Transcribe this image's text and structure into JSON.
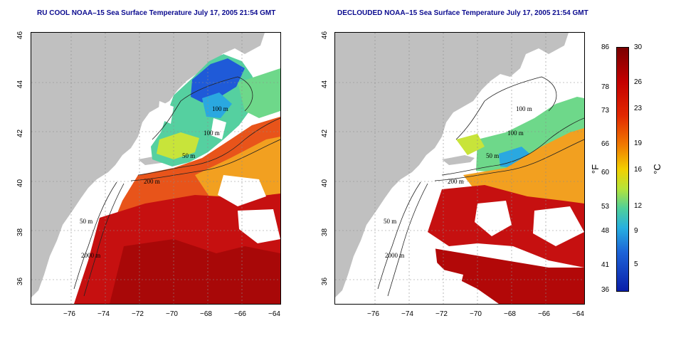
{
  "left_map": {
    "title": "RU COOL NOAA–15 Sea Surface Temperature July 17, 2005 21:54 GMT"
  },
  "right_map": {
    "title": "DECLOUDED NOAA–15 Sea Surface Temperature July 17, 2005 21:54 GMT"
  },
  "axes": {
    "y_ticks": [
      "46",
      "44",
      "42",
      "40",
      "38",
      "36"
    ],
    "x_ticks": [
      "−76",
      "−74",
      "−72",
      "−70",
      "−68",
      "−66",
      "−64"
    ]
  },
  "contour_labels": [
    "100 m",
    "100 m",
    "50 m",
    "200 m",
    "50 m",
    "2000 m"
  ],
  "colorbar": {
    "fahrenheit_label": "°F",
    "celsius_label": "°C",
    "fahrenheit_ticks": [
      "86",
      "78",
      "73",
      "66",
      "60",
      "53",
      "48",
      "41",
      "36"
    ],
    "celsius_ticks": [
      "30",
      "26",
      "23",
      "19",
      "16",
      "12",
      "9",
      "5"
    ]
  },
  "colors": {
    "land": "#c0c0c0",
    "title": "#0b0b8f",
    "cloud_mask": "#ffffff"
  }
}
